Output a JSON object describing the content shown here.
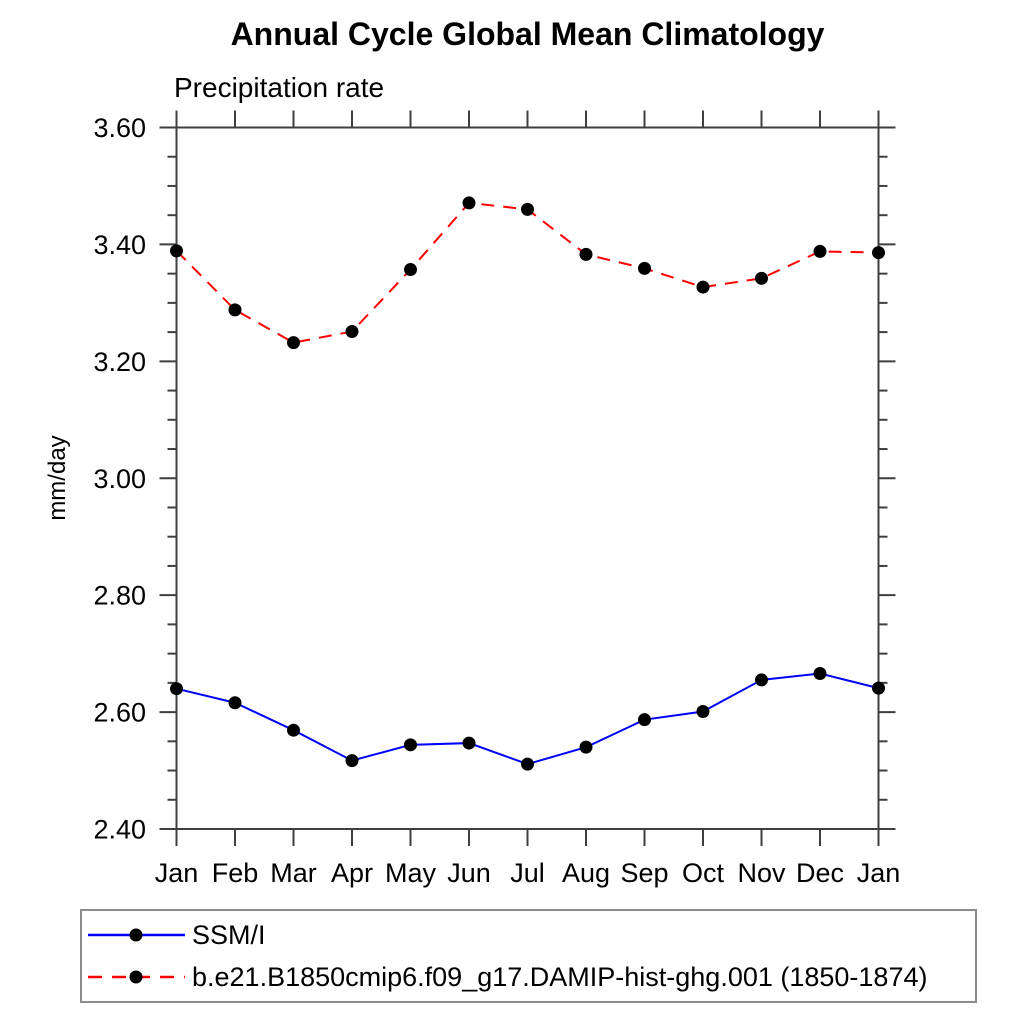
{
  "page": {
    "background": "#ffffff"
  },
  "chart_data": {
    "type": "line",
    "title": "Annual Cycle Global Mean Climatology",
    "subtitle": "Precipitation rate",
    "ylabel": "mm/day",
    "categories": [
      "Jan",
      "Feb",
      "Mar",
      "Apr",
      "May",
      "Jun",
      "Jul",
      "Aug",
      "Sep",
      "Oct",
      "Nov",
      "Dec",
      "Jan"
    ],
    "ylim": [
      2.4,
      3.6
    ],
    "ytick_major": 0.2,
    "ytick_minor": 0.05,
    "ytick_label_decimals": 2,
    "ytick_labels": [
      "2.40",
      "2.60",
      "2.80",
      "3.00",
      "3.20",
      "3.40",
      "3.60"
    ],
    "grid": false,
    "axis_color": "#3f3f3f",
    "legend_position": "bottom-left",
    "series": [
      {
        "name": "SSM/I",
        "color": "#0000ff",
        "line_style": "solid",
        "marker": "filled-circle",
        "marker_color": "#000000",
        "values": [
          2.64,
          2.616,
          2.569,
          2.517,
          2.544,
          2.547,
          2.511,
          2.54,
          2.587,
          2.601,
          2.655,
          2.666,
          2.641
        ]
      },
      {
        "name": "b.e21.B1850cmip6.f09_g17.DAMIP-hist-ghg.001 (1850-1874)",
        "color": "#ff0000",
        "line_style": "dashed",
        "marker": "filled-circle",
        "marker_color": "#000000",
        "values": [
          3.389,
          3.288,
          3.232,
          3.251,
          3.357,
          3.471,
          3.46,
          3.383,
          3.359,
          3.327,
          3.342,
          3.388,
          3.386
        ]
      }
    ]
  }
}
